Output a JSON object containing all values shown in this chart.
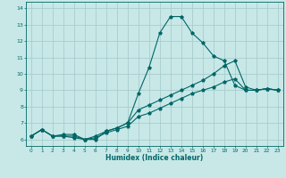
{
  "xlabel": "Humidex (Indice chaleur)",
  "bg_color": "#c8e8e8",
  "grid_color": "#a8cccc",
  "line_color": "#006666",
  "xlim": [
    -0.5,
    23.5
  ],
  "ylim": [
    5.6,
    14.4
  ],
  "xticks": [
    0,
    1,
    2,
    3,
    4,
    5,
    6,
    7,
    8,
    9,
    10,
    11,
    12,
    13,
    14,
    15,
    16,
    17,
    18,
    19,
    20,
    21,
    22,
    23
  ],
  "yticks": [
    6,
    7,
    8,
    9,
    10,
    11,
    12,
    13,
    14
  ],
  "line1_x": [
    0,
    1,
    2,
    3,
    4,
    5,
    6,
    7,
    8,
    9,
    10,
    11,
    12,
    13,
    14,
    15,
    16,
    17,
    18,
    19,
    20,
    21,
    22,
    23
  ],
  "line1_y": [
    6.2,
    6.6,
    6.2,
    6.2,
    6.1,
    6.0,
    6.0,
    6.5,
    6.7,
    7.0,
    8.8,
    10.4,
    12.5,
    13.5,
    13.5,
    12.5,
    11.9,
    11.1,
    10.8,
    9.3,
    9.0,
    9.0,
    9.1,
    9.0
  ],
  "line2_x": [
    0,
    1,
    2,
    3,
    4,
    5,
    6,
    7,
    8,
    9,
    10,
    11,
    12,
    13,
    14,
    15,
    16,
    17,
    18,
    19,
    20,
    21,
    22,
    23
  ],
  "line2_y": [
    6.2,
    6.6,
    6.2,
    6.3,
    6.3,
    6.0,
    6.2,
    6.5,
    6.7,
    7.0,
    7.8,
    8.1,
    8.4,
    8.7,
    9.0,
    9.3,
    9.6,
    10.0,
    10.5,
    10.8,
    9.2,
    9.0,
    9.1,
    9.0
  ],
  "line3_x": [
    0,
    1,
    2,
    3,
    4,
    5,
    6,
    7,
    8,
    9,
    10,
    11,
    12,
    13,
    14,
    15,
    16,
    17,
    18,
    19,
    20,
    21,
    22,
    23
  ],
  "line3_y": [
    6.2,
    6.6,
    6.2,
    6.2,
    6.2,
    6.0,
    6.1,
    6.4,
    6.6,
    6.8,
    7.4,
    7.6,
    7.9,
    8.2,
    8.5,
    8.8,
    9.0,
    9.2,
    9.5,
    9.7,
    9.0,
    9.0,
    9.1,
    9.0
  ],
  "figsize": [
    3.2,
    2.0
  ],
  "dpi": 100
}
